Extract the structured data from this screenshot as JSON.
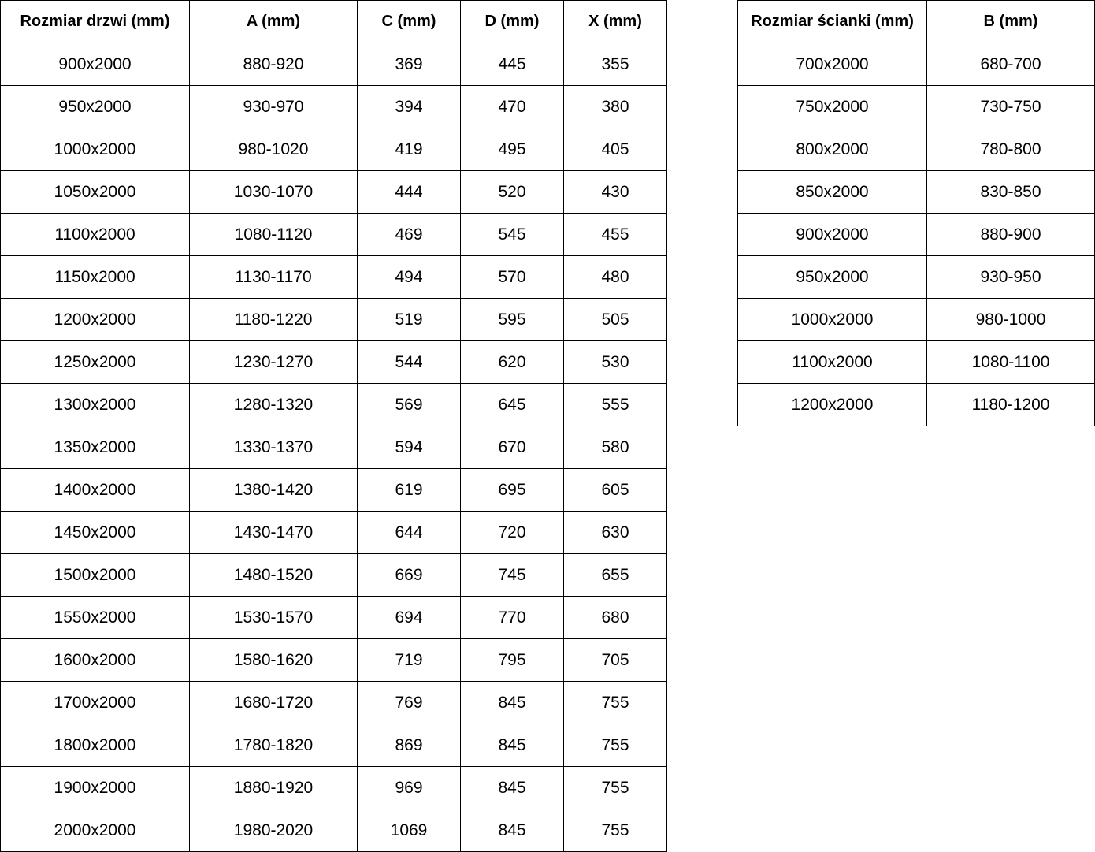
{
  "doors_table": {
    "headers": [
      "Rozmiar drzwi (mm)",
      "A (mm)",
      "C (mm)",
      "D (mm)",
      "X (mm)"
    ],
    "rows": [
      [
        "900x2000",
        "880-920",
        "369",
        "445",
        "355"
      ],
      [
        "950x2000",
        "930-970",
        "394",
        "470",
        "380"
      ],
      [
        "1000x2000",
        "980-1020",
        "419",
        "495",
        "405"
      ],
      [
        "1050x2000",
        "1030-1070",
        "444",
        "520",
        "430"
      ],
      [
        "1100x2000",
        "1080-1120",
        "469",
        "545",
        "455"
      ],
      [
        "1150x2000",
        "1130-1170",
        "494",
        "570",
        "480"
      ],
      [
        "1200x2000",
        "1180-1220",
        "519",
        "595",
        "505"
      ],
      [
        "1250x2000",
        "1230-1270",
        "544",
        "620",
        "530"
      ],
      [
        "1300x2000",
        "1280-1320",
        "569",
        "645",
        "555"
      ],
      [
        "1350x2000",
        "1330-1370",
        "594",
        "670",
        "580"
      ],
      [
        "1400x2000",
        "1380-1420",
        "619",
        "695",
        "605"
      ],
      [
        "1450x2000",
        "1430-1470",
        "644",
        "720",
        "630"
      ],
      [
        "1500x2000",
        "1480-1520",
        "669",
        "745",
        "655"
      ],
      [
        "1550x2000",
        "1530-1570",
        "694",
        "770",
        "680"
      ],
      [
        "1600x2000",
        "1580-1620",
        "719",
        "795",
        "705"
      ],
      [
        "1700x2000",
        "1680-1720",
        "769",
        "845",
        "755"
      ],
      [
        "1800x2000",
        "1780-1820",
        "869",
        "845",
        "755"
      ],
      [
        "1900x2000",
        "1880-1920",
        "969",
        "845",
        "755"
      ],
      [
        "2000x2000",
        "1980-2020",
        "1069",
        "845",
        "755"
      ]
    ]
  },
  "walls_table": {
    "headers": [
      "Rozmiar ścianki (mm)",
      "B (mm)"
    ],
    "rows": [
      [
        "700x2000",
        "680-700"
      ],
      [
        "750x2000",
        "730-750"
      ],
      [
        "800x2000",
        "780-800"
      ],
      [
        "850x2000",
        "830-850"
      ],
      [
        "900x2000",
        "880-900"
      ],
      [
        "950x2000",
        "930-950"
      ],
      [
        "1000x2000",
        "980-1000"
      ],
      [
        "1100x2000",
        "1080-1100"
      ],
      [
        "1200x2000",
        "1180-1200"
      ]
    ]
  }
}
